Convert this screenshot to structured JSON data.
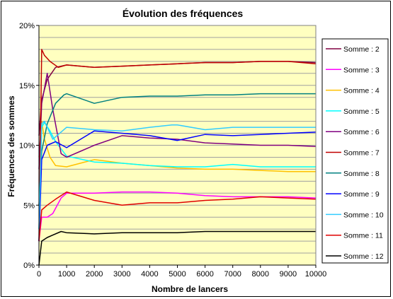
{
  "chart_data": {
    "type": "line",
    "title": "Évolution des fréquences",
    "xlabel": "Nombre de lancers",
    "ylabel": "Fréquences des sommes",
    "xlim": [
      0,
      10000
    ],
    "ylim": [
      0,
      20
    ],
    "x_ticks": [
      "0",
      "1000",
      "2000",
      "3000",
      "4000",
      "5000",
      "6000",
      "7000",
      "8000",
      "9000",
      "10000"
    ],
    "y_ticks": [
      "0%",
      "5%",
      "10%",
      "15%",
      "20%"
    ],
    "grid": "horizontal",
    "plot_background": "#FFFFC0",
    "legend_position": "right",
    "series": [
      {
        "name": "Somme : 2",
        "color": "#800040",
        "x": [
          0,
          100,
          300,
          600,
          1000,
          2000,
          3000,
          4000,
          5000,
          6000,
          7000,
          8000,
          9000,
          10000
        ],
        "y": [
          10.8,
          13.8,
          15.5,
          16.5,
          16.7,
          16.5,
          16.6,
          16.7,
          16.8,
          16.9,
          16.9,
          17.0,
          17.0,
          16.9
        ]
      },
      {
        "name": "Somme : 3",
        "color": "#FF00FF",
        "x": [
          0,
          100,
          300,
          500,
          800,
          1000,
          2000,
          3000,
          4000,
          5000,
          6000,
          7000,
          8000,
          9000,
          10000
        ],
        "y": [
          2.0,
          4.0,
          4.0,
          4.3,
          5.6,
          6.0,
          6.0,
          6.1,
          6.1,
          6.0,
          5.8,
          5.7,
          5.7,
          5.7,
          5.6
        ]
      },
      {
        "name": "Somme : 4",
        "color": "#FFC000",
        "x": [
          0,
          100,
          200,
          400,
          600,
          1000,
          1500,
          2000,
          3000,
          4000,
          5000,
          6000,
          7000,
          8000,
          9000,
          10000
        ],
        "y": [
          9.0,
          12.0,
          10.5,
          9.0,
          8.3,
          8.2,
          8.5,
          8.8,
          8.5,
          8.3,
          8.1,
          8.0,
          8.0,
          7.9,
          7.8,
          7.8
        ]
      },
      {
        "name": "Somme : 5",
        "color": "#00FFFF",
        "x": [
          0,
          100,
          200,
          400,
          600,
          1000,
          2000,
          3000,
          4000,
          5000,
          6000,
          7000,
          8000,
          9000,
          10000
        ],
        "y": [
          3.0,
          11.5,
          11.9,
          11.2,
          10.3,
          9.1,
          8.6,
          8.5,
          8.3,
          8.2,
          8.2,
          8.4,
          8.2,
          8.2,
          8.2
        ]
      },
      {
        "name": "Somme : 6",
        "color": "#800080",
        "x": [
          0,
          100,
          300,
          500,
          800,
          1000,
          1500,
          2000,
          3000,
          4000,
          5000,
          6000,
          7000,
          8000,
          9000,
          10000
        ],
        "y": [
          8.0,
          13.5,
          16.0,
          13.0,
          9.3,
          9.0,
          9.5,
          10.0,
          10.8,
          10.6,
          10.5,
          10.2,
          10.1,
          10.0,
          10.0,
          9.9
        ]
      },
      {
        "name": "Somme : 7",
        "color": "#C00000",
        "x": [
          0,
          100,
          200,
          400,
          700,
          1000,
          2000,
          3000,
          4000,
          5000,
          6000,
          7000,
          8000,
          9000,
          10000
        ],
        "y": [
          2.0,
          18.0,
          17.5,
          17.0,
          16.5,
          16.7,
          16.5,
          16.6,
          16.7,
          16.8,
          16.9,
          16.9,
          17.0,
          17.0,
          16.8
        ]
      },
      {
        "name": "Somme : 8",
        "color": "#008080",
        "x": [
          0,
          100,
          300,
          600,
          900,
          1000,
          2000,
          3000,
          4000,
          5000,
          6000,
          7000,
          8000,
          9000,
          10000
        ],
        "y": [
          5.0,
          9.5,
          11.8,
          13.5,
          14.2,
          14.3,
          13.5,
          14.0,
          14.1,
          14.1,
          14.2,
          14.2,
          14.3,
          14.3,
          14.3
        ]
      },
      {
        "name": "Somme : 9",
        "color": "#0000FF",
        "x": [
          0,
          100,
          300,
          600,
          1000,
          2000,
          3000,
          4000,
          5000,
          6000,
          7000,
          8000,
          9000,
          10000
        ],
        "y": [
          2.0,
          8.8,
          10.0,
          10.3,
          9.8,
          11.2,
          11.0,
          10.8,
          10.4,
          10.9,
          10.8,
          10.9,
          11.0,
          11.1
        ]
      },
      {
        "name": "Somme : 10",
        "color": "#33CCFF",
        "x": [
          0,
          100,
          200,
          500,
          1000,
          2000,
          3000,
          4000,
          4800,
          5000,
          6000,
          7000,
          8000,
          9000,
          10000
        ],
        "y": [
          3.0,
          11.8,
          12.0,
          10.5,
          11.5,
          11.3,
          11.2,
          11.5,
          11.7,
          11.7,
          11.3,
          11.5,
          11.5,
          11.5,
          11.5
        ]
      },
      {
        "name": "Somme : 11",
        "color": "#E00000",
        "x": [
          0,
          100,
          300,
          600,
          1000,
          2000,
          3000,
          4000,
          5000,
          6000,
          7000,
          8000,
          9000,
          10000
        ],
        "y": [
          2.0,
          4.6,
          5.0,
          5.5,
          6.1,
          5.4,
          5.0,
          5.2,
          5.2,
          5.4,
          5.5,
          5.7,
          5.6,
          5.5
        ]
      },
      {
        "name": "Somme : 12",
        "color": "#000000",
        "x": [
          0,
          100,
          300,
          500,
          800,
          1000,
          2000,
          3000,
          4000,
          5000,
          6000,
          7000,
          8000,
          9000,
          10000
        ],
        "y": [
          0.0,
          2.0,
          2.3,
          2.5,
          2.8,
          2.7,
          2.6,
          2.7,
          2.7,
          2.7,
          2.8,
          2.8,
          2.8,
          2.8,
          2.8
        ]
      }
    ]
  }
}
